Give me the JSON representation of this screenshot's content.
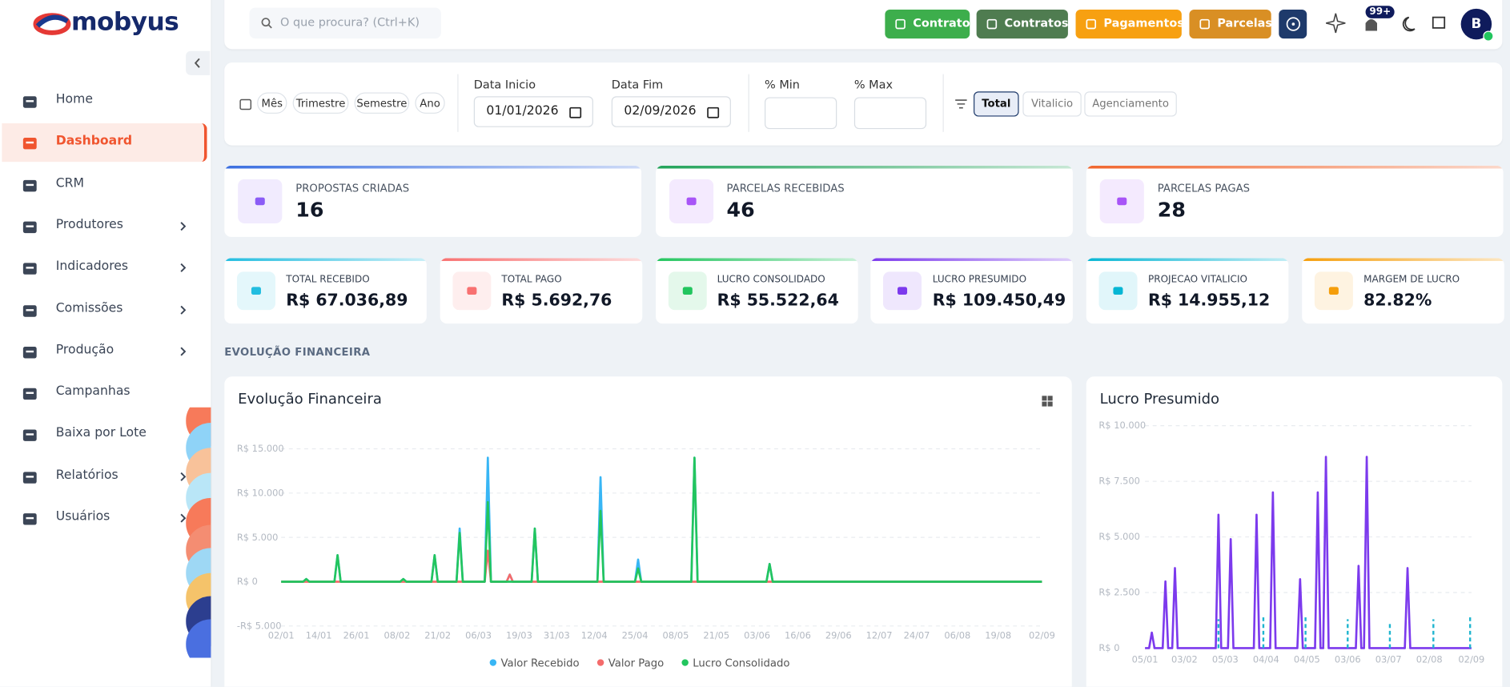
{
  "brand": "mobyus",
  "sidebar": {
    "nav": [
      {
        "label": "Home"
      },
      {
        "label": "Dashboard",
        "active": true
      },
      {
        "label": "CRM"
      },
      {
        "label": "Produtores",
        "submenu": true
      },
      {
        "label": "Indicadores",
        "submenu": true
      },
      {
        "label": "Comissões",
        "submenu": true
      },
      {
        "label": "Produção",
        "submenu": true
      },
      {
        "label": "Campanhas"
      },
      {
        "label": "Baixa por Lote"
      },
      {
        "label": "Relatórios",
        "submenu": true
      },
      {
        "label": "Usuários",
        "submenu": true
      }
    ]
  },
  "topbar": {
    "search_placeholder": "O que procura? (Ctrl+K)",
    "buttons": [
      {
        "label": "Contrato",
        "color": "#3dae4c"
      },
      {
        "label": "Contratos",
        "color": "#4f7c50"
      },
      {
        "label": "Pagamentos",
        "color": "#f7a011"
      },
      {
        "label": "Parcelas",
        "color": "#d98f24"
      }
    ],
    "notification_badge": "99+",
    "avatar": "B"
  },
  "filters": {
    "periods": [
      "Mês",
      "Trimestre",
      "Semestre",
      "Ano"
    ],
    "date_start": {
      "label": "Data Inicio",
      "value": "01/01/2026"
    },
    "date_end": {
      "label": "Data Fim",
      "value": "02/09/2026"
    },
    "pct_min": {
      "label": "% Min"
    },
    "pct_max": {
      "label": "% Max"
    },
    "types": [
      "Total",
      "Vitalicio",
      "Agenciamento"
    ],
    "active_type": 0
  },
  "kpis_main": [
    {
      "label": "PROPOSTAS CRIADAS",
      "value": 16,
      "color": "#3b6fe0"
    },
    {
      "label": "PARCELAS RECEBIDAS",
      "value": 46,
      "color": "#22a35a"
    },
    {
      "label": "PARCELAS PAGAS",
      "value": 28,
      "color": "#f0662e"
    }
  ],
  "kpis_finance": [
    {
      "label": "TOTAL RECEBIDO",
      "value": "R$ 67.036,89",
      "color": "#22bde0"
    },
    {
      "label": "TOTAL PAGO",
      "value": "R$ 5.692,76",
      "color": "#f87171"
    },
    {
      "label": "LUCRO CONSOLIDADO",
      "value": "R$ 55.522,64",
      "color": "#22c55e"
    },
    {
      "label": "LUCRO PRESUMIDO",
      "value": "R$ 109.450,49",
      "color": "#7c3aed"
    },
    {
      "label": "PROJECAO VITALICIO",
      "value": "R$ 14.955,12",
      "color": "#06b6d4"
    },
    {
      "label": "MARGEM DE LUCRO",
      "value": "82.82%",
      "color": "#f59e0b"
    }
  ],
  "section_title": "EVOLUÇÃO FINANCEIRA",
  "chart_data": [
    {
      "type": "line",
      "title": "Evolução Financeira",
      "grid": true,
      "x": [
        "02/01",
        "09/01",
        "10/01",
        "11/01",
        "19/01",
        "20/01",
        "21/01",
        "09/02",
        "10/02",
        "11/02",
        "19/02",
        "20/02",
        "21/02",
        "27/02",
        "28/02",
        "01/03",
        "08/03",
        "09/03",
        "10/03",
        "15/03",
        "16/03",
        "17/03",
        "23/03",
        "24/03",
        "25/03",
        "13/04",
        "14/04",
        "15/04",
        "25/04",
        "26/04",
        "27/04",
        "13/05",
        "14/05",
        "15/05",
        "06/06",
        "07/06",
        "08/06",
        "02/09"
      ],
      "xlim": [
        "02/01",
        "02/09"
      ],
      "xticks": [
        "02/01",
        "14/01",
        "26/01",
        "08/02",
        "21/02",
        "06/03",
        "19/03",
        "31/03",
        "12/04",
        "25/04",
        "08/05",
        "21/05",
        "03/06",
        "16/06",
        "29/06",
        "12/07",
        "24/07",
        "06/08",
        "19/08",
        "02/09"
      ],
      "ylim": [
        -5000,
        15000
      ],
      "yticks": [
        {
          "value": -5000,
          "label": "-R$ 5.000"
        },
        {
          "value": 0,
          "label": "R$ 0"
        },
        {
          "value": 5000,
          "label": "R$ 5.000"
        },
        {
          "value": 10000,
          "label": "R$ 10.000"
        },
        {
          "value": 15000,
          "label": "R$ 15.000"
        }
      ],
      "series": [
        {
          "name": "Valor Recebido",
          "color": "#38b6f5",
          "values": [
            0,
            0,
            300,
            0,
            0,
            3000,
            0,
            0,
            300,
            0,
            0,
            3000,
            0,
            0,
            6000,
            0,
            0,
            14000,
            0,
            0,
            800,
            0,
            0,
            6000,
            0,
            0,
            11800,
            0,
            0,
            2500,
            0,
            0,
            14000,
            0,
            0,
            2000,
            0,
            0
          ]
        },
        {
          "name": "Valor Pago",
          "color": "#f46b6b",
          "values": [
            0,
            0,
            0,
            0,
            0,
            0,
            0,
            0,
            0,
            0,
            0,
            0,
            0,
            0,
            0,
            0,
            0,
            3500,
            0,
            0,
            800,
            0,
            0,
            0,
            0,
            0,
            0,
            0,
            0,
            0,
            0,
            0,
            0,
            0,
            0,
            0,
            0,
            0
          ]
        },
        {
          "name": "Lucro Consolidado",
          "color": "#22c55e",
          "values": [
            0,
            0,
            300,
            0,
            0,
            3000,
            0,
            0,
            300,
            0,
            0,
            3000,
            0,
            0,
            5500,
            0,
            0,
            9000,
            0,
            0,
            0,
            0,
            0,
            6000,
            0,
            0,
            8000,
            0,
            0,
            1500,
            0,
            0,
            14000,
            0,
            0,
            2000,
            0,
            0
          ]
        }
      ]
    },
    {
      "type": "line",
      "title": "Lucro Presumido",
      "grid": true,
      "xlim": [
        "05/01",
        "02/09"
      ],
      "xticks": [
        "05/01",
        "03/02",
        "05/03",
        "04/04",
        "04/05",
        "03/06",
        "03/07",
        "02/08",
        "02/09"
      ],
      "ylim": [
        0,
        10000
      ],
      "yticks": [
        {
          "value": 0,
          "label": "R$ 0"
        },
        {
          "value": 2500,
          "label": "R$ 2.500"
        },
        {
          "value": 5000,
          "label": "R$ 5.000"
        },
        {
          "value": 7500,
          "label": "R$ 7.500"
        },
        {
          "value": 10000,
          "label": "R$ 10.000"
        }
      ],
      "series": [
        {
          "color": "#7c3aed",
          "style": "line",
          "x": [
            "05/01",
            "08/01",
            "10/01",
            "12/01",
            "18/01",
            "20/01",
            "22/01",
            "25/01",
            "27/01",
            "29/01",
            "26/02",
            "28/02",
            "02/03",
            "07/03",
            "09/03",
            "11/03",
            "26/03",
            "28/03",
            "30/03",
            "07/04",
            "09/04",
            "11/04",
            "27/04",
            "29/04",
            "01/05",
            "10/05",
            "12/05",
            "14/05",
            "16/05",
            "18/05",
            "20/05",
            "09/06",
            "11/06",
            "13/06",
            "15/06",
            "17/06",
            "19/06",
            "15/07",
            "17/07",
            "19/07",
            "02/09"
          ],
          "values": [
            0,
            0,
            700,
            0,
            0,
            3000,
            0,
            0,
            3600,
            0,
            0,
            6000,
            0,
            0,
            4900,
            0,
            0,
            6000,
            0,
            0,
            7000,
            0,
            0,
            3100,
            0,
            0,
            7000,
            0,
            0,
            8600,
            0,
            0,
            3700,
            0,
            0,
            8600,
            0,
            0,
            3600,
            0,
            0
          ]
        },
        {
          "color": "#1fb5cf",
          "style": "dashed-stem",
          "x": [
            "28/02",
            "02/04",
            "03/05",
            "03/06",
            "04/07",
            "05/08",
            "01/09"
          ],
          "values": [
            1300,
            1400,
            1400,
            1300,
            1200,
            1300,
            1400
          ]
        }
      ]
    }
  ]
}
